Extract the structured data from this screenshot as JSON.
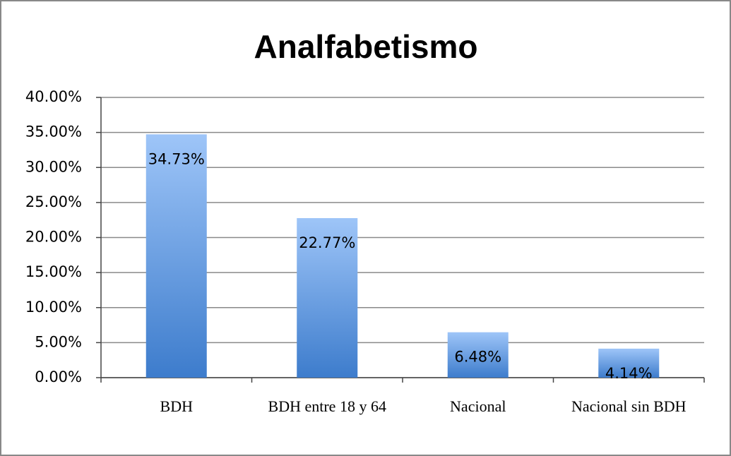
{
  "chart_data": {
    "type": "bar",
    "title": "Analfabetismo",
    "categories": [
      "BDH",
      "BDH entre 18 y 64",
      "Nacional",
      "Nacional sin BDH"
    ],
    "values": [
      34.73,
      22.77,
      6.48,
      4.14
    ],
    "value_labels": [
      "34.73%",
      "22.77%",
      "6.48%",
      "4.14%"
    ],
    "color": "#4a86d4",
    "ylim": [
      0,
      40
    ],
    "yticks": [
      {
        "value": 0,
        "label": "0.00%"
      },
      {
        "value": 5,
        "label": "5.00%"
      },
      {
        "value": 10,
        "label": "10.00%"
      },
      {
        "value": 15,
        "label": "15.00%"
      },
      {
        "value": 20,
        "label": "20.00%"
      },
      {
        "value": 25,
        "label": "25.00%"
      },
      {
        "value": 30,
        "label": "30.00%"
      },
      {
        "value": 35,
        "label": "35.00%"
      },
      {
        "value": 40,
        "label": "40.00%"
      }
    ],
    "grid": true
  }
}
